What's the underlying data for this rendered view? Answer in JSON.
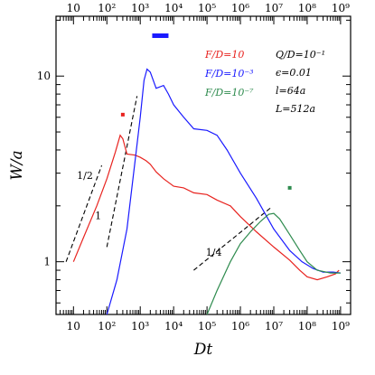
{
  "chart_data": {
    "type": "line",
    "xlabel": "Dt",
    "ylabel": "W/a",
    "xscale": "log",
    "yscale": "log",
    "xlim": [
      3,
      2000000000
    ],
    "ylim": [
      0.52,
      21
    ],
    "grid": false,
    "legend_position": "top-right",
    "x_ticks": [
      {
        "value": 10,
        "label": "10"
      },
      {
        "value": 100,
        "label": "10²"
      },
      {
        "value": 1000,
        "label": "10³"
      },
      {
        "value": 10000,
        "label": "10⁴"
      },
      {
        "value": 100000,
        "label": "10⁵"
      },
      {
        "value": 1000000,
        "label": "10⁶"
      },
      {
        "value": 10000000,
        "label": "10⁷"
      },
      {
        "value": 100000000,
        "label": "10⁸"
      },
      {
        "value": 1000000000,
        "label": "10⁹"
      }
    ],
    "y_ticks": [
      {
        "value": 1,
        "label": "1"
      },
      {
        "value": 10,
        "label": "10"
      }
    ],
    "series": [
      {
        "name": "F/D=10",
        "color": "#e8231f",
        "points": [
          [
            10,
            1.0
          ],
          [
            20,
            1.35
          ],
          [
            50,
            2.0
          ],
          [
            100,
            2.8
          ],
          [
            180,
            3.9
          ],
          [
            250,
            4.8
          ],
          [
            300,
            4.6
          ],
          [
            400,
            3.8
          ],
          [
            700,
            3.75
          ],
          [
            1000,
            3.65
          ],
          [
            1500,
            3.5
          ],
          [
            2000,
            3.35
          ],
          [
            3000,
            3.05
          ],
          [
            5000,
            2.8
          ],
          [
            10000,
            2.55
          ],
          [
            20000,
            2.5
          ],
          [
            40000,
            2.35
          ],
          [
            100000,
            2.3
          ],
          [
            200000,
            2.15
          ],
          [
            500000,
            2.0
          ],
          [
            1000000,
            1.75
          ],
          [
            3000000,
            1.45
          ],
          [
            10000000,
            1.2
          ],
          [
            30000000,
            1.02
          ],
          [
            60000000,
            0.9
          ],
          [
            100000000,
            0.83
          ],
          [
            200000000,
            0.8
          ],
          [
            400000000,
            0.83
          ],
          [
            700000000,
            0.86
          ],
          [
            900000000,
            0.9
          ]
        ]
      },
      {
        "name": "F/D=10⁻³",
        "color": "#1a1aff",
        "points": [
          [
            100,
            0.52
          ],
          [
            200,
            0.8
          ],
          [
            400,
            1.5
          ],
          [
            700,
            3.5
          ],
          [
            1000,
            6.0
          ],
          [
            1300,
            9.5
          ],
          [
            1600,
            10.9
          ],
          [
            2000,
            10.5
          ],
          [
            3000,
            8.6
          ],
          [
            5000,
            8.9
          ],
          [
            7000,
            8.0
          ],
          [
            10000,
            7.0
          ],
          [
            20000,
            6.0
          ],
          [
            40000,
            5.2
          ],
          [
            100000,
            5.1
          ],
          [
            200000,
            4.8
          ],
          [
            400000,
            4.0
          ],
          [
            1000000,
            3.0
          ],
          [
            3000000,
            2.2
          ],
          [
            10000000,
            1.5
          ],
          [
            30000000,
            1.15
          ],
          [
            70000000,
            1.0
          ],
          [
            150000000,
            0.92
          ],
          [
            300000000,
            0.88
          ],
          [
            600000000,
            0.88
          ],
          [
            1000000000,
            0.87
          ]
        ]
      },
      {
        "name": "F/D=10⁻⁷",
        "color": "#2e8b4e",
        "points": [
          [
            100000,
            0.52
          ],
          [
            200000,
            0.7
          ],
          [
            500000,
            1.0
          ],
          [
            1000000,
            1.25
          ],
          [
            2000000,
            1.45
          ],
          [
            4000000,
            1.65
          ],
          [
            7000000,
            1.8
          ],
          [
            10000000,
            1.82
          ],
          [
            15000000,
            1.7
          ],
          [
            30000000,
            1.4
          ],
          [
            60000000,
            1.15
          ],
          [
            100000000,
            1.0
          ],
          [
            200000000,
            0.9
          ],
          [
            500000000,
            0.87
          ],
          [
            1000000000,
            0.87
          ]
        ]
      }
    ],
    "markers": [
      {
        "series": "F/D=10",
        "x": 300,
        "y": 6.2
      },
      {
        "series": "F/D=10⁻³",
        "x": 4000,
        "y": 16.5,
        "shape": "bar"
      },
      {
        "series": "F/D=10⁻⁷",
        "x": 30000000,
        "y": 2.5
      }
    ],
    "slope_lines": [
      {
        "label": "1/2",
        "points": [
          [
            6,
            1.0
          ],
          [
            70,
            3.3
          ]
        ],
        "label_at": [
          22,
          2.8
        ]
      },
      {
        "label": "1",
        "points": [
          [
            100,
            1.2
          ],
          [
            800,
            7.8
          ]
        ],
        "label_at": [
          55,
          1.7
        ]
      },
      {
        "label": "1/4",
        "points": [
          [
            40000,
            0.9
          ],
          [
            8000000,
            1.95
          ]
        ],
        "label_at": [
          160000,
          1.08
        ]
      }
    ],
    "annotations": [
      {
        "text": "Q/D=10⁻¹",
        "x": 10000000,
        "y": 15.5
      },
      {
        "text": "ϵ=0.01",
        "x": 10000000,
        "y": 12.8
      },
      {
        "text": "l=64a",
        "x": 10000000,
        "y": 10.5
      },
      {
        "text": "L=512a",
        "x": 10000000,
        "y": 8.6
      }
    ]
  }
}
